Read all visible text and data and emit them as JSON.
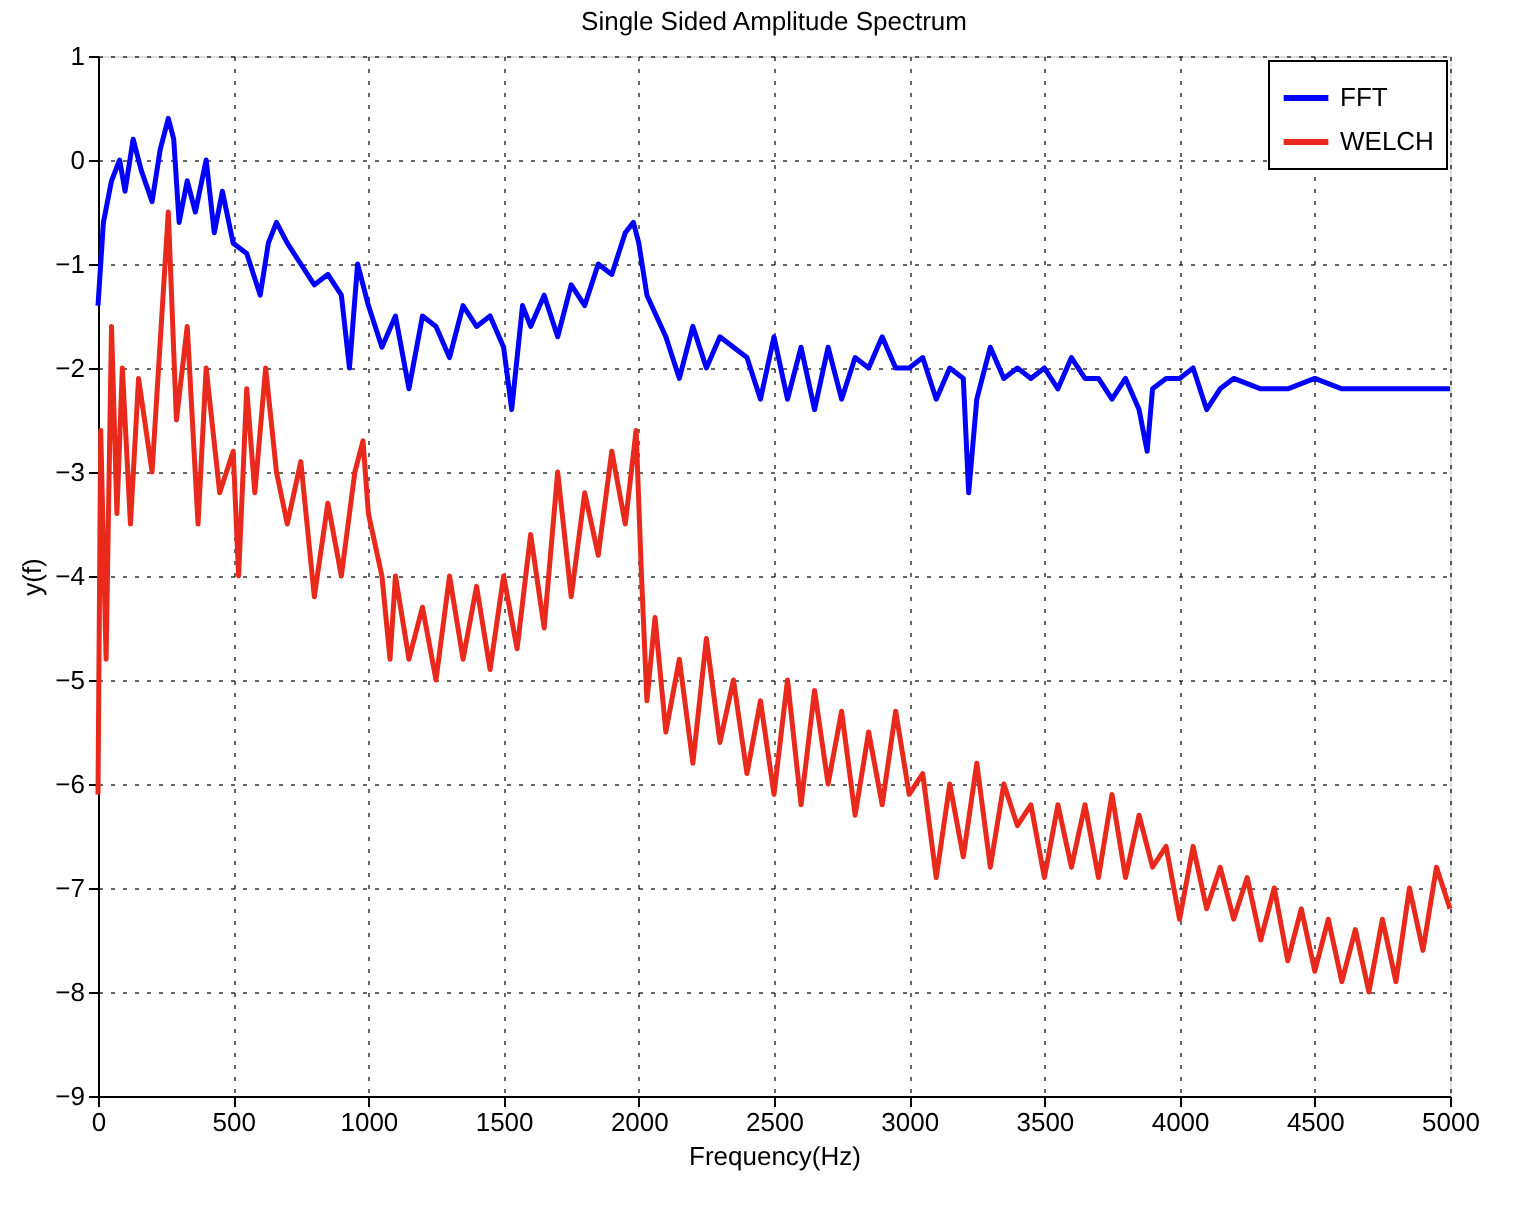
{
  "chart_data": {
    "type": "line",
    "title": "Single Sided Amplitude Spectrum",
    "xlabel": "Frequency(Hz)",
    "ylabel": "y(f)",
    "xlim": [
      0,
      5000
    ],
    "xticks": [
      0,
      500,
      1000,
      1500,
      2000,
      2500,
      3000,
      3500,
      4000,
      4500,
      5000
    ],
    "ylim": [
      -9,
      1
    ],
    "yticks": [
      -9,
      -8,
      -7,
      -6,
      -5,
      -4,
      -3,
      -2,
      -1,
      0,
      1
    ],
    "grid": true,
    "legend": "top right",
    "line_style": "solid",
    "marker": "none",
    "series": [
      {
        "name": "FFT",
        "color": "#0000ff",
        "x": [
          0,
          20,
          50,
          80,
          100,
          130,
          160,
          200,
          230,
          260,
          280,
          300,
          330,
          360,
          400,
          430,
          460,
          500,
          550,
          600,
          630,
          660,
          700,
          750,
          800,
          850,
          900,
          930,
          960,
          1000,
          1050,
          1100,
          1150,
          1200,
          1250,
          1300,
          1350,
          1400,
          1450,
          1500,
          1530,
          1570,
          1600,
          1650,
          1700,
          1750,
          1800,
          1850,
          1900,
          1950,
          1980,
          2000,
          2030,
          2100,
          2150,
          2200,
          2250,
          2300,
          2350,
          2400,
          2450,
          2500,
          2550,
          2600,
          2650,
          2700,
          2750,
          2800,
          2850,
          2900,
          2950,
          3000,
          3050,
          3100,
          3150,
          3200,
          3220,
          3250,
          3300,
          3350,
          3400,
          3450,
          3500,
          3550,
          3600,
          3650,
          3700,
          3750,
          3800,
          3850,
          3880,
          3900,
          3950,
          4000,
          4050,
          4100,
          4150,
          4200,
          4300,
          4400,
          4500,
          4600,
          4700,
          4800,
          4900,
          5000
        ],
        "values": [
          -1.4,
          -0.6,
          -0.2,
          0,
          -0.3,
          0.2,
          -0.1,
          -0.4,
          0.1,
          0.4,
          0.2,
          -0.6,
          -0.2,
          -0.5,
          0,
          -0.7,
          -0.3,
          -0.8,
          -0.9,
          -1.3,
          -0.8,
          -0.6,
          -0.8,
          -1,
          -1.2,
          -1.1,
          -1.3,
          -2,
          -1,
          -1.4,
          -1.8,
          -1.5,
          -2.2,
          -1.5,
          -1.6,
          -1.9,
          -1.4,
          -1.6,
          -1.5,
          -1.8,
          -2.4,
          -1.4,
          -1.6,
          -1.3,
          -1.7,
          -1.2,
          -1.4,
          -1,
          -1.1,
          -0.7,
          -0.6,
          -0.8,
          -1.3,
          -1.7,
          -2.1,
          -1.6,
          -2,
          -1.7,
          -1.8,
          -1.9,
          -2.3,
          -1.7,
          -2.3,
          -1.8,
          -2.4,
          -1.8,
          -2.3,
          -1.9,
          -2,
          -1.7,
          -2,
          -2,
          -1.9,
          -2.3,
          -2,
          -2.1,
          -3.2,
          -2.3,
          -1.8,
          -2.1,
          -2,
          -2.1,
          -2,
          -2.2,
          -1.9,
          -2.1,
          -2.1,
          -2.3,
          -2.1,
          -2.4,
          -2.8,
          -2.2,
          -2.1,
          -2.1,
          -2,
          -2.4,
          -2.2,
          -2.1,
          -2.2,
          -2.2,
          -2.1,
          -2.2,
          -2.2,
          -2.2,
          -2.2,
          -2.2
        ]
      },
      {
        "name": "WELCH",
        "color": "#e8291c",
        "x": [
          0,
          10,
          30,
          50,
          70,
          90,
          120,
          150,
          200,
          260,
          290,
          330,
          370,
          400,
          450,
          500,
          520,
          550,
          580,
          620,
          660,
          700,
          750,
          800,
          850,
          900,
          950,
          980,
          1000,
          1050,
          1080,
          1100,
          1150,
          1200,
          1250,
          1300,
          1350,
          1400,
          1450,
          1500,
          1550,
          1600,
          1650,
          1700,
          1750,
          1800,
          1850,
          1900,
          1950,
          1990,
          2010,
          2030,
          2060,
          2100,
          2150,
          2200,
          2250,
          2300,
          2350,
          2400,
          2450,
          2500,
          2550,
          2600,
          2650,
          2700,
          2750,
          2800,
          2850,
          2900,
          2950,
          3000,
          3050,
          3100,
          3150,
          3200,
          3250,
          3300,
          3350,
          3400,
          3450,
          3500,
          3550,
          3600,
          3650,
          3700,
          3750,
          3800,
          3850,
          3900,
          3950,
          4000,
          4050,
          4100,
          4150,
          4200,
          4250,
          4300,
          4350,
          4400,
          4450,
          4500,
          4550,
          4600,
          4650,
          4700,
          4750,
          4800,
          4850,
          4900,
          4950,
          5000
        ],
        "values": [
          -6.1,
          -2.6,
          -4.8,
          -1.6,
          -3.4,
          -2,
          -3.5,
          -2.1,
          -3,
          -0.5,
          -2.5,
          -1.6,
          -3.5,
          -2,
          -3.2,
          -2.8,
          -4,
          -2.2,
          -3.2,
          -2,
          -3,
          -3.5,
          -2.9,
          -4.2,
          -3.3,
          -4,
          -3,
          -2.7,
          -3.4,
          -4,
          -4.8,
          -4,
          -4.8,
          -4.3,
          -5,
          -4,
          -4.8,
          -4.1,
          -4.9,
          -4,
          -4.7,
          -3.6,
          -4.5,
          -3,
          -4.2,
          -3.2,
          -3.8,
          -2.8,
          -3.5,
          -2.6,
          -4,
          -5.2,
          -4.4,
          -5.5,
          -4.8,
          -5.8,
          -4.6,
          -5.6,
          -5,
          -5.9,
          -5.2,
          -6.1,
          -5,
          -6.2,
          -5.1,
          -6,
          -5.3,
          -6.3,
          -5.5,
          -6.2,
          -5.3,
          -6.1,
          -5.9,
          -6.9,
          -6,
          -6.7,
          -5.8,
          -6.8,
          -6,
          -6.4,
          -6.2,
          -6.9,
          -6.2,
          -6.8,
          -6.2,
          -6.9,
          -6.1,
          -6.9,
          -6.3,
          -6.8,
          -6.6,
          -7.3,
          -6.6,
          -7.2,
          -6.8,
          -7.3,
          -6.9,
          -7.5,
          -7,
          -7.7,
          -7.2,
          -7.8,
          -7.3,
          -7.9,
          -7.4,
          -8,
          -7.3,
          -7.9,
          -7,
          -7.6,
          -6.8,
          -7.2
        ]
      }
    ]
  }
}
